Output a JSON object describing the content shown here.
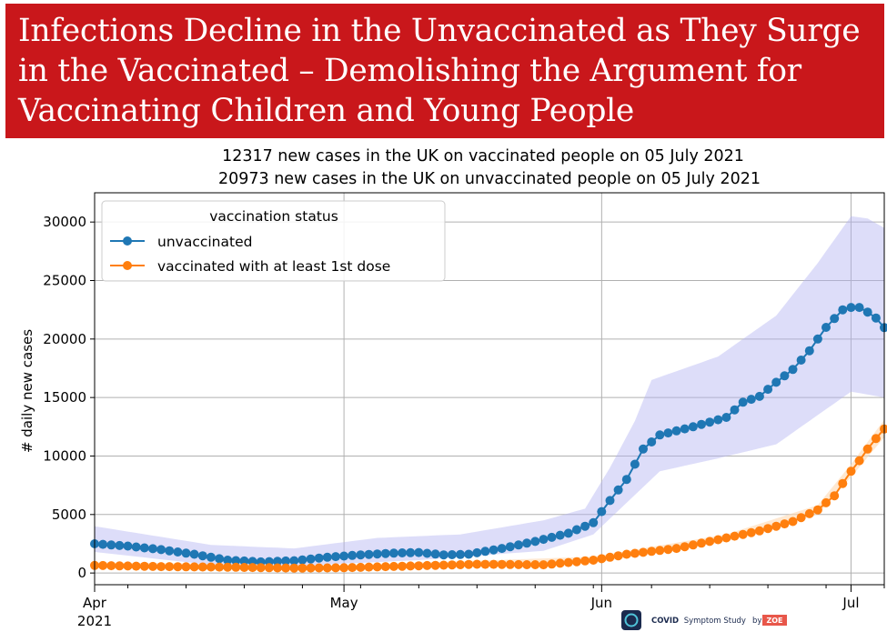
{
  "banner": {
    "headline": "Infections Decline in the Unvaccinated as They Surge in the Vaccinated – Demolishing the Argument for Vaccinating Children and Young People",
    "background_color": "#c9171b",
    "text_color": "#ffffff"
  },
  "chart_data": {
    "type": "line",
    "title_lines": [
      "12317 new cases in the UK on vaccinated people on 05 July 2021",
      "20973 new cases in the UK on unvaccinated people on 05 July 2021"
    ],
    "ylabel": "# daily new cases",
    "xlabel": "",
    "ylim": [
      -1000,
      32500
    ],
    "yticks": [
      0,
      5000,
      10000,
      15000,
      20000,
      25000,
      30000
    ],
    "xlim": [
      "2021-04-01",
      "2021-07-05"
    ],
    "xticks": [
      {
        "date": "2021-04-01",
        "label": "Apr",
        "sublabel": "2021"
      },
      {
        "date": "2021-05-01",
        "label": "May"
      },
      {
        "date": "2021-06-01",
        "label": "Jun"
      },
      {
        "date": "2021-07-01",
        "label": "Jul"
      }
    ],
    "grid": true,
    "legend": {
      "title": "vaccination status",
      "placement": "top-left"
    },
    "series": [
      {
        "name": "unvaccinated",
        "color": "#1f77b4",
        "band_color": "#b3b3f2",
        "marker": "circle",
        "points": [
          [
            "2021-04-01",
            2500
          ],
          [
            "2021-04-05",
            2300
          ],
          [
            "2021-04-09",
            2000
          ],
          [
            "2021-04-13",
            1600
          ],
          [
            "2021-04-17",
            1100
          ],
          [
            "2021-04-21",
            950
          ],
          [
            "2021-04-25",
            1050
          ],
          [
            "2021-04-29",
            1350
          ],
          [
            "2021-05-03",
            1550
          ],
          [
            "2021-05-07",
            1700
          ],
          [
            "2021-05-10",
            1750
          ],
          [
            "2021-05-13",
            1550
          ],
          [
            "2021-05-16",
            1600
          ],
          [
            "2021-05-20",
            2100
          ],
          [
            "2021-05-24",
            2700
          ],
          [
            "2021-05-28",
            3400
          ],
          [
            "2021-05-31",
            4300
          ],
          [
            "2021-06-02",
            6200
          ],
          [
            "2021-06-04",
            8000
          ],
          [
            "2021-06-06",
            10600
          ],
          [
            "2021-06-08",
            11800
          ],
          [
            "2021-06-12",
            12500
          ],
          [
            "2021-06-16",
            13300
          ],
          [
            "2021-06-18",
            14600
          ],
          [
            "2021-06-20",
            15100
          ],
          [
            "2021-06-22",
            16300
          ],
          [
            "2021-06-24",
            17400
          ],
          [
            "2021-06-26",
            19000
          ],
          [
            "2021-06-28",
            21000
          ],
          [
            "2021-06-30",
            22500
          ],
          [
            "2021-07-01",
            22700
          ],
          [
            "2021-07-02",
            22700
          ],
          [
            "2021-07-03",
            22300
          ],
          [
            "2021-07-04",
            21800
          ],
          [
            "2021-07-05",
            20973
          ]
        ],
        "band_lower": [
          [
            "2021-04-01",
            1800
          ],
          [
            "2021-04-15",
            700
          ],
          [
            "2021-04-25",
            600
          ],
          [
            "2021-05-10",
            1100
          ],
          [
            "2021-05-25",
            1900
          ],
          [
            "2021-05-31",
            3300
          ],
          [
            "2021-06-04",
            6000
          ],
          [
            "2021-06-08",
            8700
          ],
          [
            "2021-06-15",
            9800
          ],
          [
            "2021-06-22",
            11000
          ],
          [
            "2021-06-27",
            13500
          ],
          [
            "2021-07-01",
            15500
          ],
          [
            "2021-07-05",
            15000
          ]
        ],
        "band_upper": [
          [
            "2021-04-01",
            4000
          ],
          [
            "2021-04-15",
            2400
          ],
          [
            "2021-04-25",
            2100
          ],
          [
            "2021-05-05",
            3000
          ],
          [
            "2021-05-15",
            3300
          ],
          [
            "2021-05-25",
            4500
          ],
          [
            "2021-05-30",
            5500
          ],
          [
            "2021-06-02",
            9000
          ],
          [
            "2021-06-05",
            13000
          ],
          [
            "2021-06-07",
            16500
          ],
          [
            "2021-06-15",
            18500
          ],
          [
            "2021-06-22",
            22000
          ],
          [
            "2021-06-27",
            26500
          ],
          [
            "2021-06-30",
            29500
          ],
          [
            "2021-07-01",
            30500
          ],
          [
            "2021-07-03",
            30300
          ],
          [
            "2021-07-05",
            29500
          ]
        ]
      },
      {
        "name": "vaccinated with at least 1st dose",
        "color": "#ff7f0e",
        "band_color": "#ffd9b0",
        "marker": "circle",
        "points": [
          [
            "2021-04-01",
            650
          ],
          [
            "2021-04-09",
            550
          ],
          [
            "2021-04-17",
            500
          ],
          [
            "2021-04-25",
            420
          ],
          [
            "2021-05-01",
            450
          ],
          [
            "2021-05-09",
            600
          ],
          [
            "2021-05-17",
            750
          ],
          [
            "2021-05-25",
            700
          ],
          [
            "2021-05-31",
            1100
          ],
          [
            "2021-06-04",
            1600
          ],
          [
            "2021-06-10",
            2100
          ],
          [
            "2021-06-16",
            3000
          ],
          [
            "2021-06-20",
            3600
          ],
          [
            "2021-06-24",
            4400
          ],
          [
            "2021-06-27",
            5400
          ],
          [
            "2021-06-29",
            6600
          ],
          [
            "2021-07-01",
            8700
          ],
          [
            "2021-07-02",
            9600
          ],
          [
            "2021-07-03",
            10600
          ],
          [
            "2021-07-04",
            11500
          ],
          [
            "2021-07-05",
            12317
          ]
        ],
        "band_lower": [
          [
            "2021-04-01",
            400
          ],
          [
            "2021-05-01",
            250
          ],
          [
            "2021-05-31",
            850
          ],
          [
            "2021-06-16",
            2700
          ],
          [
            "2021-06-27",
            5000
          ],
          [
            "2021-07-01",
            8200
          ],
          [
            "2021-07-05",
            11600
          ]
        ],
        "band_upper": [
          [
            "2021-04-01",
            900
          ],
          [
            "2021-05-01",
            650
          ],
          [
            "2021-05-31",
            1400
          ],
          [
            "2021-06-16",
            3300
          ],
          [
            "2021-06-27",
            5800
          ],
          [
            "2021-07-01",
            9300
          ],
          [
            "2021-07-05",
            13100
          ]
        ]
      }
    ]
  },
  "logo": {
    "brand_icon_text": "C-19",
    "name_bold": "COVID",
    "name_rest": "Symptom Study",
    "by_text": "by",
    "badge_text": "ZOE"
  }
}
